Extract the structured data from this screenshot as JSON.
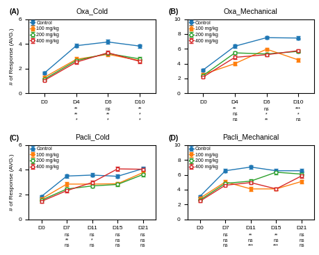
{
  "chart_data": [
    {
      "type": "line",
      "label": "(A)",
      "title": "Oxa_Cold",
      "ylabel": "# of Response (AVG.)",
      "categories": [
        "D0",
        "D4",
        "D6",
        "D10"
      ],
      "ylim": [
        0,
        6
      ],
      "yticks": [
        0,
        2,
        4,
        6
      ],
      "legend": "upper left",
      "series": [
        {
          "name": "Control",
          "marker": "circle",
          "values": [
            1.65,
            3.85,
            4.15,
            3.82
          ],
          "yerr": [
            0.13,
            0.14,
            0.17,
            0.13
          ]
        },
        {
          "name": "100 mg/kg",
          "marker": "square",
          "values": [
            1.3,
            2.75,
            3.15,
            2.65
          ],
          "yerr": [
            0.12,
            0.2,
            0.17,
            0.13
          ]
        },
        {
          "name": "200 mg/kg",
          "marker": "open circle",
          "values": [
            1.15,
            2.65,
            3.22,
            2.78
          ],
          "yerr": [
            0.1,
            0.14,
            0.13,
            0.14
          ]
        },
        {
          "name": "400 mg/kg",
          "marker": "open square",
          "values": [
            1.05,
            2.52,
            3.28,
            2.58
          ],
          "yerr": [
            0.1,
            0.13,
            0.14,
            0.13
          ]
        }
      ],
      "annotations": [
        {
          "category": "D4",
          "texts": [
            "**",
            "**",
            "*"
          ]
        },
        {
          "category": "D6",
          "texts": [
            "ns",
            "**",
            "*"
          ]
        },
        {
          "category": "D10",
          "texts": [
            "**",
            "*",
            "*"
          ]
        }
      ]
    },
    {
      "type": "line",
      "label": "(B)",
      "title": "Oxa_Mechanical",
      "categories": [
        "D0",
        "D4",
        "D6",
        "D10"
      ],
      "ylim": [
        0,
        10
      ],
      "yticks": [
        0,
        2,
        4,
        6,
        8,
        10
      ],
      "legend": "upper left",
      "series": [
        {
          "name": "Control",
          "marker": "circle",
          "values": [
            3.15,
            6.35,
            7.5,
            7.45
          ],
          "yerr": [
            0.18,
            0.22,
            0.2,
            0.22
          ]
        },
        {
          "name": "100 mg/kg",
          "marker": "square",
          "values": [
            2.55,
            4.0,
            5.95,
            4.5
          ],
          "yerr": [
            0.16,
            0.22,
            0.2,
            0.25
          ]
        },
        {
          "name": "200 mg/kg",
          "marker": "open circle",
          "values": [
            2.4,
            5.45,
            5.3,
            5.65
          ],
          "yerr": [
            0.15,
            0.22,
            0.2,
            0.22
          ]
        },
        {
          "name": "400 mg/kg",
          "marker": "open square",
          "values": [
            2.2,
            4.85,
            5.2,
            5.75
          ],
          "yerr": [
            0.13,
            0.2,
            0.2,
            0.22
          ]
        }
      ],
      "annotations": [
        {
          "category": "D4",
          "texts": [
            "**",
            "ns",
            "ns"
          ]
        },
        {
          "category": "D6",
          "texts": [
            "ns",
            "*",
            "**"
          ]
        },
        {
          "category": "D10",
          "texts": [
            "***",
            "*",
            "ns"
          ]
        }
      ]
    },
    {
      "type": "line",
      "label": "(C)",
      "title": "Pacli_Cold",
      "ylabel": "# of Response (AVG.)",
      "categories": [
        "D0",
        "D7",
        "D11",
        "D15",
        "D21"
      ],
      "ylim": [
        0,
        6
      ],
      "yticks": [
        0,
        2,
        4,
        6
      ],
      "legend": "upper left",
      "series": [
        {
          "name": "Control",
          "marker": "circle",
          "values": [
            1.85,
            3.5,
            3.58,
            3.48,
            4.1
          ],
          "yerr": [
            0.12,
            0.14,
            0.14,
            0.14,
            0.14
          ]
        },
        {
          "name": "100 mg/kg",
          "marker": "square",
          "values": [
            1.65,
            2.85,
            2.85,
            2.88,
            3.78
          ],
          "yerr": [
            0.1,
            0.16,
            0.14,
            0.15,
            0.15
          ]
        },
        {
          "name": "200 mg/kg",
          "marker": "open circle",
          "values": [
            1.55,
            2.45,
            2.7,
            2.82,
            3.62
          ],
          "yerr": [
            0.1,
            0.13,
            0.14,
            0.13,
            0.14
          ]
        },
        {
          "name": "400 mg/kg",
          "marker": "open square",
          "values": [
            1.45,
            2.32,
            2.98,
            4.08,
            4.05
          ],
          "yerr": [
            0.1,
            0.13,
            0.14,
            0.15,
            0.14
          ]
        }
      ],
      "annotations": [
        {
          "category": "D7",
          "texts": [
            "ns",
            "**",
            "ns"
          ]
        },
        {
          "category": "D11",
          "texts": [
            "ns",
            "*",
            "ns"
          ]
        },
        {
          "category": "D15",
          "texts": [
            "ns",
            "ns",
            "ns"
          ]
        },
        {
          "category": "D21",
          "texts": [
            "ns",
            "ns",
            "ns"
          ]
        }
      ]
    },
    {
      "type": "line",
      "label": "(D)",
      "title": "Pacli_Mechanical",
      "categories": [
        "D0",
        "D7",
        "D11",
        "D15",
        "D21"
      ],
      "ylim": [
        0,
        10
      ],
      "yticks": [
        0,
        2,
        4,
        6,
        8,
        10
      ],
      "legend": "upper left",
      "series": [
        {
          "name": "Control",
          "marker": "circle",
          "values": [
            3.1,
            6.55,
            7.05,
            6.55,
            6.55
          ],
          "yerr": [
            0.18,
            0.22,
            0.25,
            0.22,
            0.22
          ]
        },
        {
          "name": "100 mg/kg",
          "marker": "square",
          "values": [
            2.85,
            5.05,
            4.1,
            4.1,
            5.1
          ],
          "yerr": [
            0.16,
            0.22,
            0.25,
            0.22,
            0.22
          ]
        },
        {
          "name": "200 mg/kg",
          "marker": "open circle",
          "values": [
            2.6,
            4.85,
            5.15,
            6.35,
            6.1
          ],
          "yerr": [
            0.14,
            0.2,
            0.22,
            0.25,
            0.22
          ]
        },
        {
          "name": "400 mg/kg",
          "marker": "open square",
          "values": [
            2.45,
            4.6,
            4.95,
            4.1,
            5.85
          ],
          "yerr": [
            0.13,
            0.18,
            0.22,
            0.22,
            0.22
          ]
        }
      ],
      "annotations": [
        {
          "category": "D7",
          "texts": [
            "ns",
            "ns",
            "ns"
          ]
        },
        {
          "category": "D11",
          "texts": [
            "**",
            "ns",
            "***"
          ]
        },
        {
          "category": "D15",
          "texts": [
            "**",
            "ns",
            "***"
          ]
        },
        {
          "category": "D21",
          "texts": [
            "ns",
            "ns",
            "ns"
          ]
        }
      ]
    }
  ]
}
